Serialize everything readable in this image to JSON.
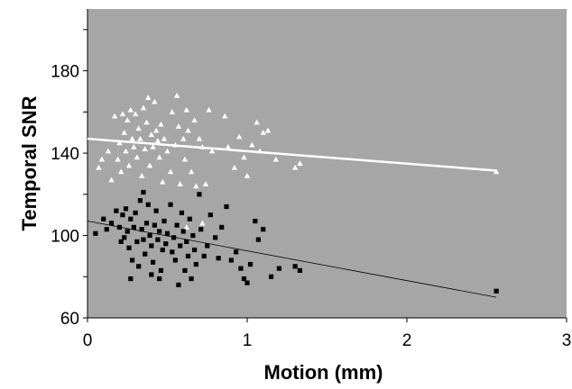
{
  "chart_data": {
    "type": "scatter",
    "title": "",
    "xlabel": "Motion (mm)",
    "ylabel": "Temporal SNR",
    "xlim": [
      0,
      3
    ],
    "ylim": [
      60,
      210
    ],
    "x_ticks": [
      "0",
      "1",
      "2",
      "3"
    ],
    "y_ticks": [
      "60",
      "100",
      "140",
      "180"
    ],
    "grid": false,
    "legend": "none",
    "plot_background": "#a6a6a6",
    "series": [
      {
        "marker": "triangle",
        "color": "#ffffff",
        "points": [
          [
            0.07,
            133
          ],
          [
            0.09,
            137
          ],
          [
            0.13,
            141
          ],
          [
            0.15,
            127
          ],
          [
            0.17,
            158
          ],
          [
            0.19,
            137
          ],
          [
            0.2,
            145
          ],
          [
            0.21,
            131
          ],
          [
            0.22,
            159
          ],
          [
            0.23,
            150
          ],
          [
            0.24,
            141
          ],
          [
            0.25,
            156
          ],
          [
            0.26,
            134
          ],
          [
            0.27,
            161
          ],
          [
            0.28,
            147
          ],
          [
            0.29,
            143
          ],
          [
            0.3,
            159
          ],
          [
            0.31,
            138
          ],
          [
            0.32,
            152
          ],
          [
            0.33,
            147
          ],
          [
            0.34,
            129
          ],
          [
            0.35,
            162
          ],
          [
            0.36,
            142
          ],
          [
            0.37,
            155
          ],
          [
            0.38,
            167
          ],
          [
            0.39,
            134
          ],
          [
            0.4,
            149
          ],
          [
            0.41,
            143
          ],
          [
            0.42,
            165
          ],
          [
            0.43,
            151
          ],
          [
            0.44,
            146
          ],
          [
            0.45,
            138
          ],
          [
            0.46,
            154
          ],
          [
            0.47,
            126
          ],
          [
            0.48,
            147
          ],
          [
            0.5,
            141
          ],
          [
            0.52,
            131
          ],
          [
            0.53,
            160
          ],
          [
            0.55,
            144
          ],
          [
            0.56,
            168
          ],
          [
            0.57,
            153
          ],
          [
            0.58,
            125
          ],
          [
            0.6,
            147
          ],
          [
            0.61,
            137
          ],
          [
            0.62,
            161
          ],
          [
            0.63,
            151
          ],
          [
            0.65,
            131
          ],
          [
            0.67,
            156
          ],
          [
            0.7,
            147
          ],
          [
            0.72,
            143
          ],
          [
            0.74,
            125
          ],
          [
            0.76,
            161
          ],
          [
            0.78,
            141
          ],
          [
            0.86,
            158
          ],
          [
            0.88,
            143
          ],
          [
            0.92,
            133
          ],
          [
            0.95,
            148
          ],
          [
            0.98,
            138
          ],
          [
            1.0,
            129
          ],
          [
            1.03,
            144
          ],
          [
            1.06,
            155
          ],
          [
            1.08,
            141
          ],
          [
            1.1,
            150
          ],
          [
            1.13,
            151
          ],
          [
            1.18,
            137
          ],
          [
            1.3,
            133
          ],
          [
            1.33,
            135
          ],
          [
            0.62,
            104
          ],
          [
            0.72,
            106
          ],
          [
            0.68,
            124
          ],
          [
            2.56,
            131
          ]
        ]
      },
      {
        "marker": "square",
        "color": "#000000",
        "points": [
          [
            0.05,
            101
          ],
          [
            0.1,
            108
          ],
          [
            0.15,
            106
          ],
          [
            0.18,
            112
          ],
          [
            0.2,
            104
          ],
          [
            0.21,
            97
          ],
          [
            0.22,
            110
          ],
          [
            0.23,
            99
          ],
          [
            0.24,
            113
          ],
          [
            0.25,
            102
          ],
          [
            0.26,
            94
          ],
          [
            0.27,
            108
          ],
          [
            0.28,
            88
          ],
          [
            0.29,
            104
          ],
          [
            0.3,
            111
          ],
          [
            0.31,
            97
          ],
          [
            0.32,
            85
          ],
          [
            0.33,
            117
          ],
          [
            0.34,
            103
          ],
          [
            0.35,
            98
          ],
          [
            0.36,
            91
          ],
          [
            0.37,
            106
          ],
          [
            0.38,
            115
          ],
          [
            0.39,
            100
          ],
          [
            0.4,
            95
          ],
          [
            0.41,
            87
          ],
          [
            0.42,
            105
          ],
          [
            0.43,
            112
          ],
          [
            0.44,
            98
          ],
          [
            0.45,
            102
          ],
          [
            0.46,
            83
          ],
          [
            0.47,
            93
          ],
          [
            0.48,
            107
          ],
          [
            0.49,
            96
          ],
          [
            0.5,
            101
          ],
          [
            0.52,
            115
          ],
          [
            0.53,
            92
          ],
          [
            0.54,
            99
          ],
          [
            0.55,
            88
          ],
          [
            0.56,
            105
          ],
          [
            0.57,
            76
          ],
          [
            0.58,
            95
          ],
          [
            0.59,
            111
          ],
          [
            0.6,
            102
          ],
          [
            0.61,
            83
          ],
          [
            0.62,
            97
          ],
          [
            0.63,
            90
          ],
          [
            0.64,
            108
          ],
          [
            0.65,
            79
          ],
          [
            0.66,
            100
          ],
          [
            0.67,
            93
          ],
          [
            0.68,
            86
          ],
          [
            0.7,
            120
          ],
          [
            0.71,
            103
          ],
          [
            0.73,
            90
          ],
          [
            0.75,
            95
          ],
          [
            0.77,
            110
          ],
          [
            0.8,
            99
          ],
          [
            0.82,
            89
          ],
          [
            0.84,
            104
          ],
          [
            0.87,
            114
          ],
          [
            0.9,
            88
          ],
          [
            0.93,
            92
          ],
          [
            0.96,
            84
          ],
          [
            0.98,
            79
          ],
          [
            1.0,
            77
          ],
          [
            1.02,
            86
          ],
          [
            1.05,
            107
          ],
          [
            1.07,
            98
          ],
          [
            1.1,
            103
          ],
          [
            1.15,
            80
          ],
          [
            1.2,
            84
          ],
          [
            1.3,
            85
          ],
          [
            1.33,
            83
          ],
          [
            0.27,
            79
          ],
          [
            0.4,
            81
          ],
          [
            0.12,
            103
          ],
          [
            0.35,
            121
          ],
          [
            0.45,
            79
          ],
          [
            2.56,
            73
          ]
        ]
      }
    ],
    "trendlines": [
      {
        "color": "#ffffff",
        "width": 2.5,
        "x": [
          0,
          2.56
        ],
        "y": [
          147,
          131.5
        ]
      },
      {
        "color": "#000000",
        "width": 0.8,
        "x": [
          0,
          2.56
        ],
        "y": [
          107,
          70
        ]
      }
    ]
  }
}
